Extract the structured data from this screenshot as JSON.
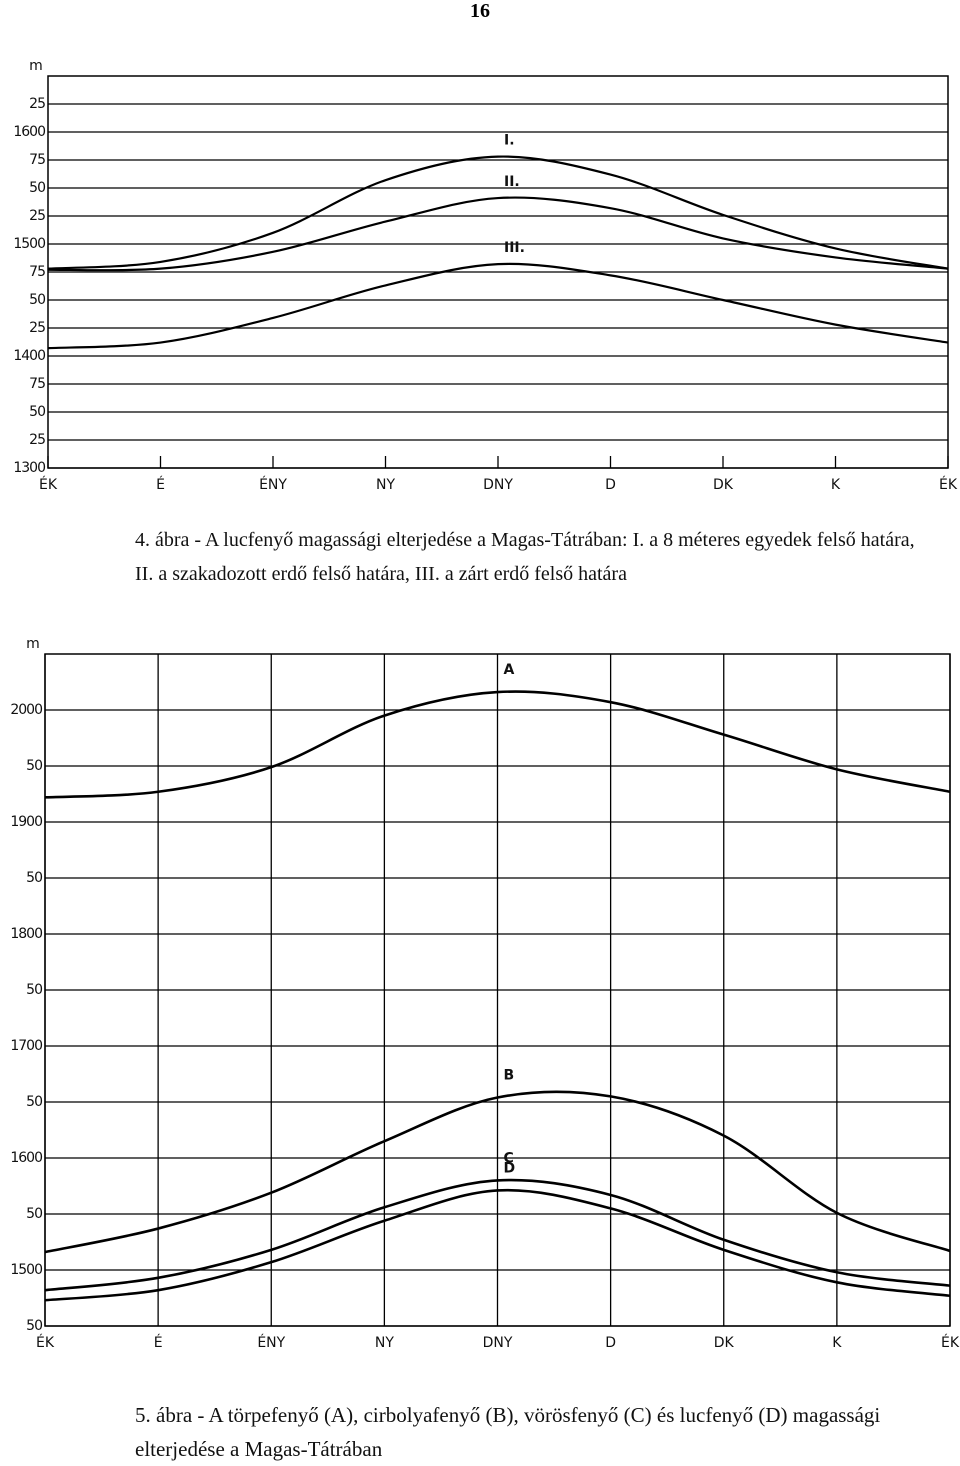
{
  "page_number": "16",
  "chart_data": [
    {
      "type": "line",
      "y_label": "m",
      "caption": "4. ábra - A lucfenyő magassági elterjedése a Magas-Tátrában: I. a 8 méteres egyedek felső határa, II. a szakadozott erdő felső határa, III. a zárt erdő felső határa",
      "categories": [
        "ÉK",
        "É",
        "ÉNY",
        "NY",
        "DNY",
        "D",
        "DK",
        "K",
        "ÉK"
      ],
      "ylim": [
        1300,
        1650
      ],
      "yticks": [
        1300,
        {
          "value": 1325,
          "label": "25"
        },
        {
          "value": 1350,
          "label": "50"
        },
        {
          "value": 1375,
          "label": "75"
        },
        1400,
        {
          "value": 1425,
          "label": "25"
        },
        {
          "value": 1450,
          "label": "50"
        },
        {
          "value": 1475,
          "label": "75"
        },
        1500,
        {
          "value": 1525,
          "label": "25"
        },
        {
          "value": 1550,
          "label": "50"
        },
        {
          "value": 1575,
          "label": "75"
        },
        1600,
        {
          "value": 1625,
          "label": "25"
        }
      ],
      "grid": "horizontal",
      "series": [
        {
          "name": "I.",
          "color": "#000000",
          "values": [
            1478,
            1484,
            1510,
            1557,
            1578,
            1562,
            1526,
            1496,
            1478
          ]
        },
        {
          "name": "II.",
          "color": "#000000",
          "values": [
            1477,
            1478,
            1493,
            1520,
            1541,
            1532,
            1505,
            1488,
            1478
          ]
        },
        {
          "name": "III.",
          "color": "#000000",
          "values": [
            1407,
            1412,
            1434,
            1463,
            1482,
            1472,
            1450,
            1428,
            1412
          ]
        }
      ]
    },
    {
      "type": "line",
      "y_label": "m",
      "caption": "5. ábra - A törpefenyő (A), cirbolyafenyő (B), vörösfenyő (C) és lucfenyő (D) magassági elterjedése a Magas-Tátrában",
      "categories": [
        "ÉK",
        "É",
        "ÉNY",
        "NY",
        "DNY",
        "D",
        "DK",
        "K",
        "ÉK"
      ],
      "ylim": [
        1450,
        2050
      ],
      "yticks": [
        {
          "value": 1450,
          "label": "50"
        },
        1500,
        {
          "value": 1550,
          "label": "50"
        },
        1600,
        {
          "value": 1650,
          "label": "50"
        },
        1700,
        {
          "value": 1750,
          "label": "50"
        },
        1800,
        {
          "value": 1850,
          "label": "50"
        },
        1900,
        {
          "value": 1950,
          "label": "50"
        },
        2000
      ],
      "grid": "both",
      "series": [
        {
          "name": "A",
          "color": "#000000",
          "values": [
            1922,
            1927,
            1949,
            1995,
            2016,
            2007,
            1978,
            1947,
            1927
          ]
        },
        {
          "name": "B",
          "color": "#000000",
          "values": [
            1516,
            1537,
            1569,
            1615,
            1654,
            1655,
            1620,
            1551,
            1517
          ]
        },
        {
          "name": "C",
          "color": "#000000",
          "values": [
            1482,
            1493,
            1518,
            1556,
            1580,
            1567,
            1527,
            1498,
            1486
          ]
        },
        {
          "name": "D",
          "color": "#000000",
          "values": [
            1473,
            1482,
            1507,
            1544,
            1571,
            1555,
            1518,
            1489,
            1477
          ]
        }
      ]
    }
  ]
}
